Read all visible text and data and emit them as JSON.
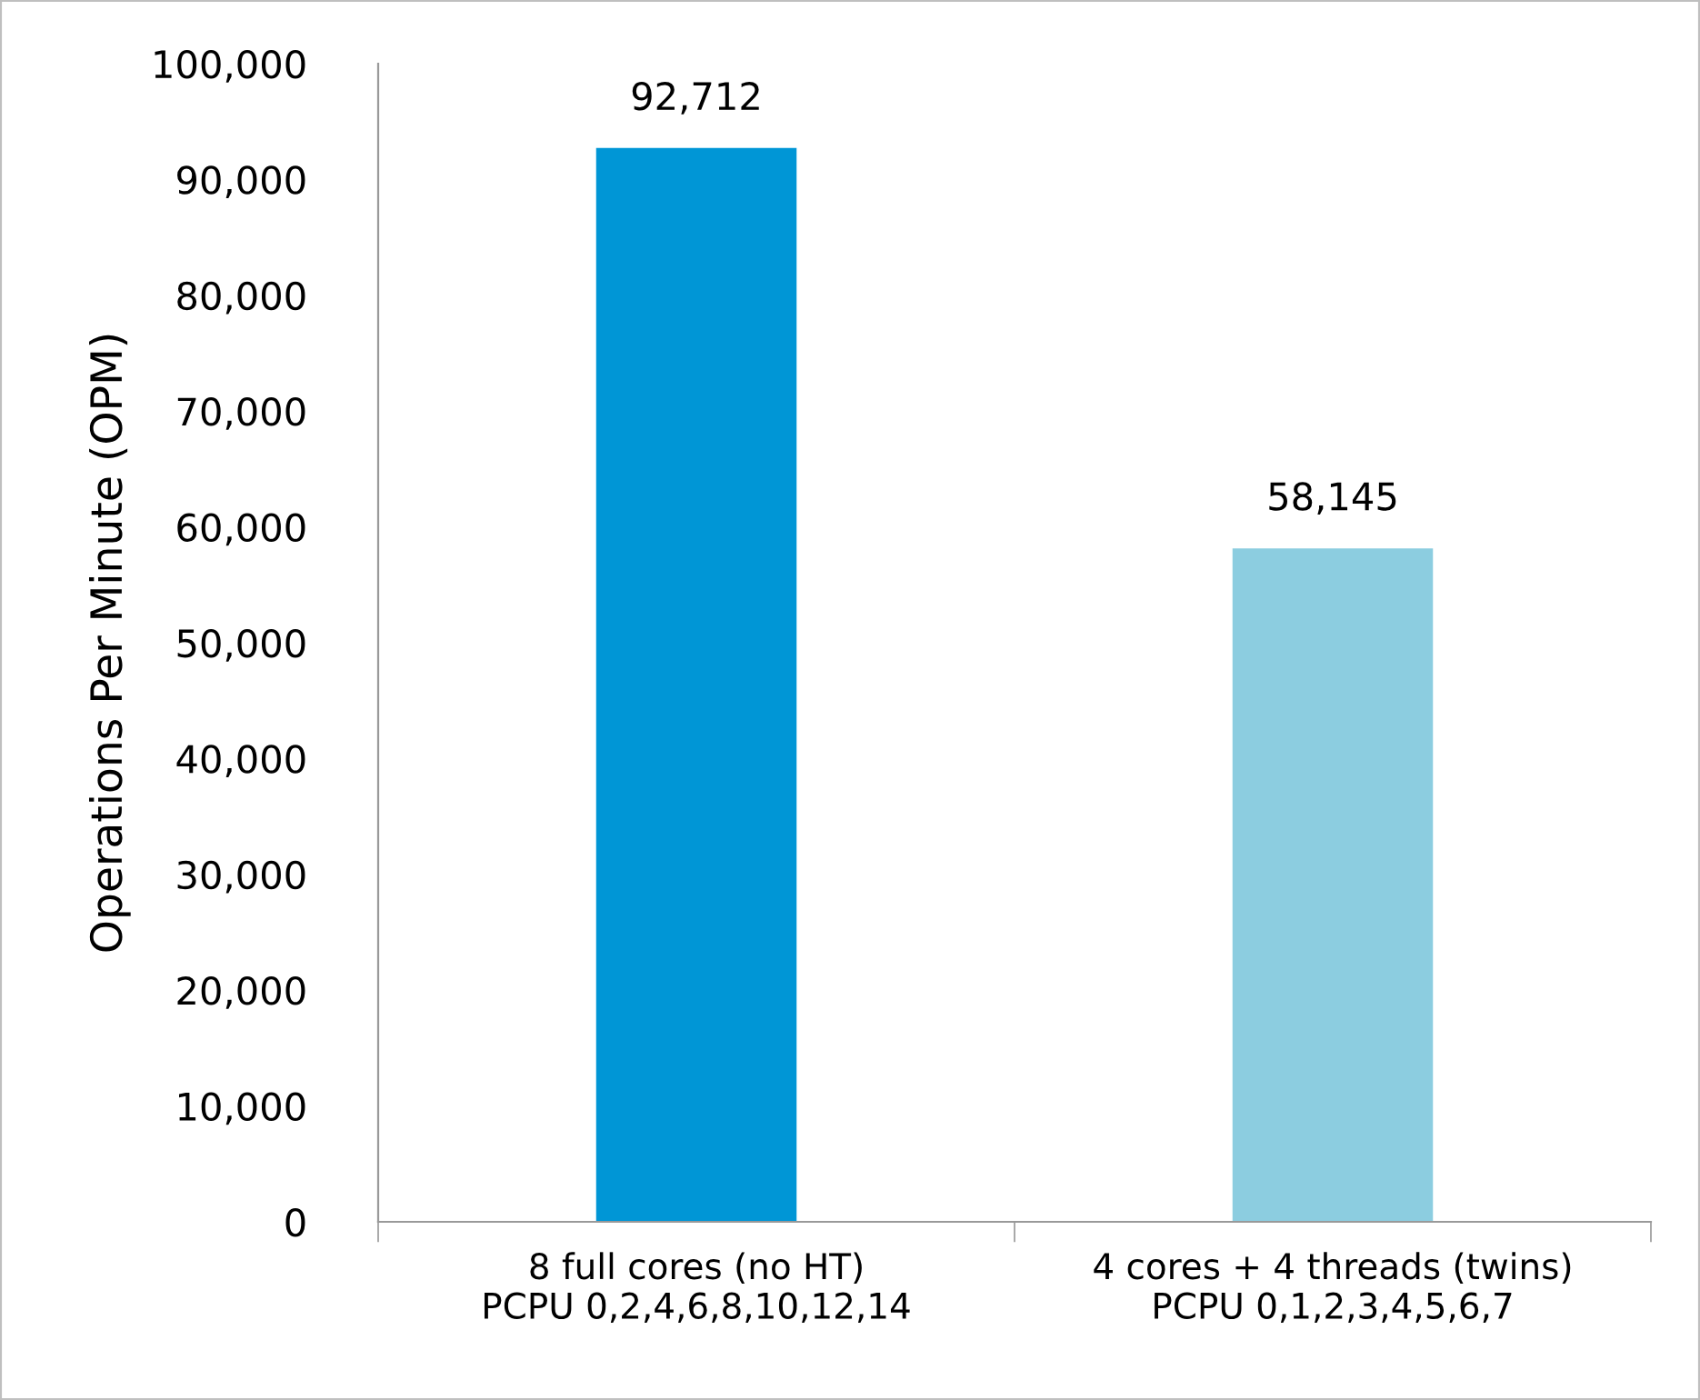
{
  "chart_data": {
    "type": "bar",
    "ylabel": "Operations Per Minute (OPM)",
    "categories": [
      "8 full cores (no HT)\nPCPU 0,2,4,6,8,10,12,14",
      "4 cores + 4 threads (twins)\nPCPU 0,1,2,3,4,5,6,7"
    ],
    "values": [
      92712,
      58145
    ],
    "colors": [
      "#0096d6",
      "#8ccde0"
    ],
    "value_labels": [
      "92,712",
      "58,145"
    ],
    "ylim": [
      0,
      100000
    ],
    "yticks": [
      0,
      {
        "value": 10000,
        "label": "10,000"
      },
      {
        "value": 20000,
        "label": "20,000"
      },
      {
        "value": 30000,
        "label": "30,000"
      },
      {
        "value": 40000,
        "label": "40,000"
      },
      {
        "value": 50000,
        "label": "50,000"
      },
      {
        "value": 60000,
        "label": "60,000"
      },
      {
        "value": 70000,
        "label": "70,000"
      },
      {
        "value": 80000,
        "label": "80,000"
      },
      {
        "value": 90000,
        "label": "90,000"
      },
      {
        "value": 100000,
        "label": "100,000"
      }
    ],
    "grid": false,
    "legend": false
  }
}
